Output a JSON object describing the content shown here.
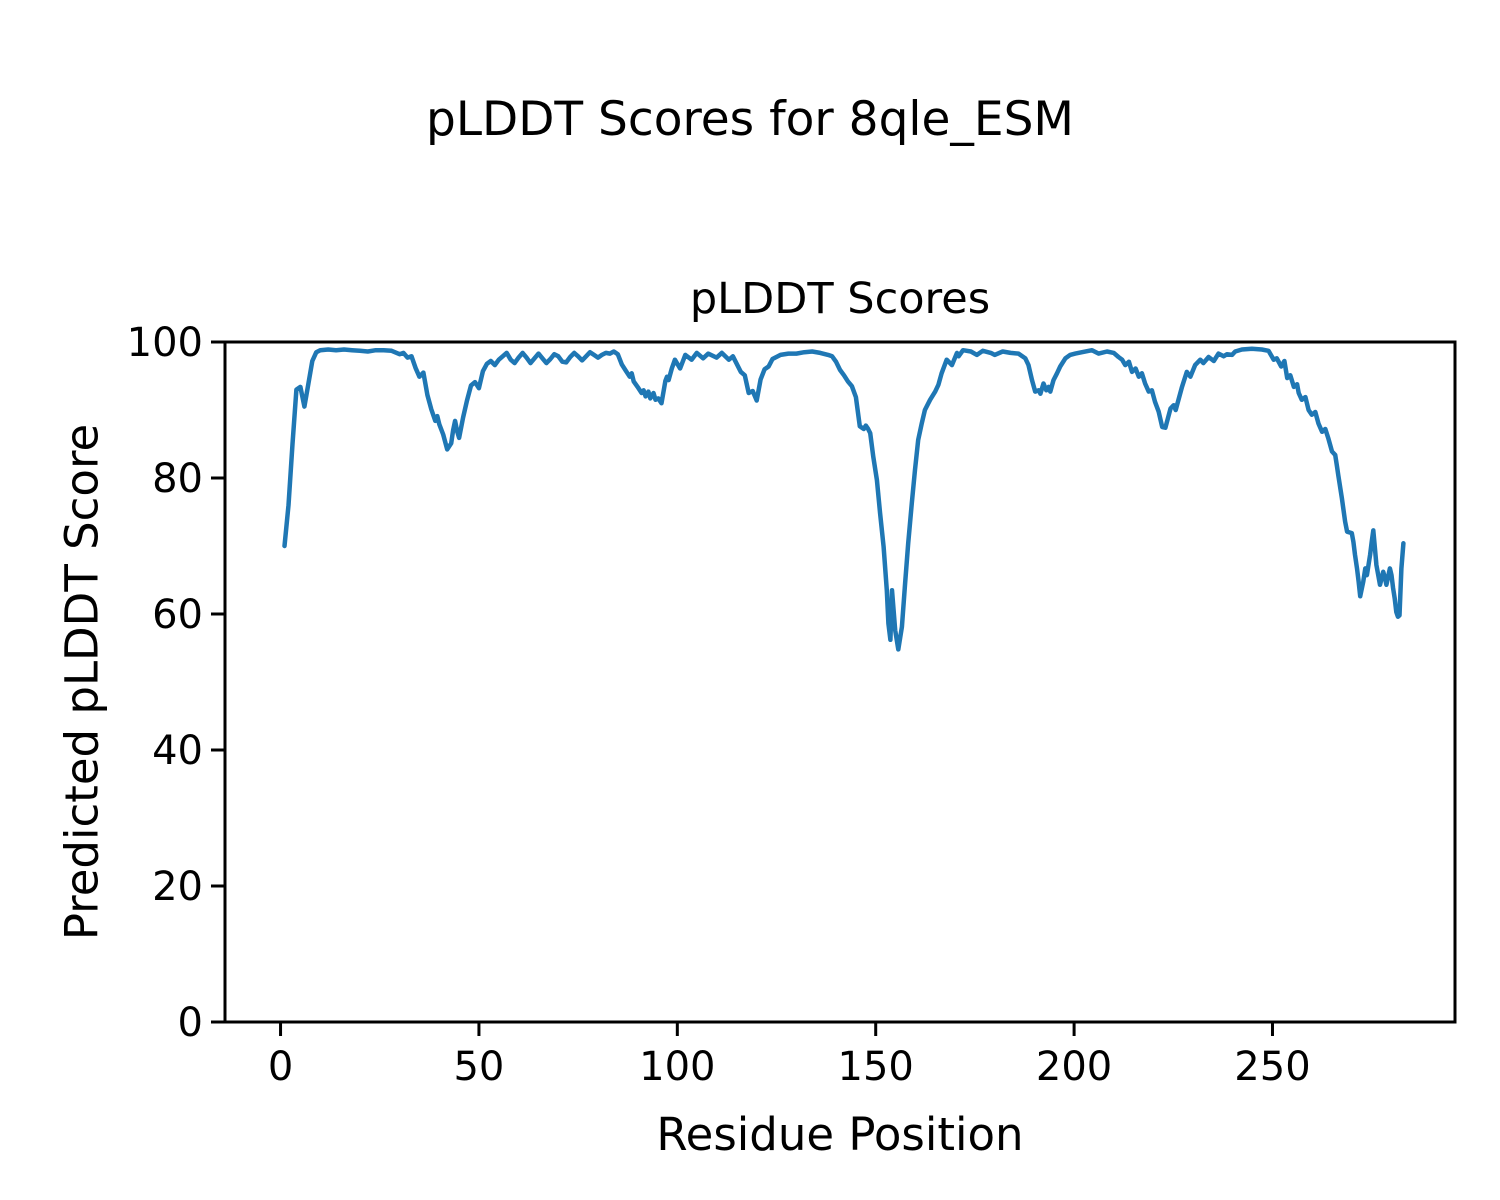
{
  "figure": {
    "title": "pLDDT Scores for 8qle_ESM"
  },
  "chart_data": {
    "type": "line",
    "title": "pLDDT Scores",
    "xlabel": "Residue Position",
    "ylabel": "Predicted pLDDT Score",
    "xlim": [
      -14,
      296
    ],
    "ylim": [
      0,
      100
    ],
    "xticks": [
      0,
      50,
      100,
      150,
      200,
      250
    ],
    "yticks": [
      0,
      20,
      40,
      60,
      80,
      100
    ],
    "grid": false,
    "legend": "none",
    "line_color": "#1f77b4",
    "line_width": 4.5,
    "series": [
      {
        "name": "pLDDT",
        "points": [
          [
            1,
            70.0
          ],
          [
            2,
            76.0
          ],
          [
            3,
            85.0
          ],
          [
            4,
            93.0
          ],
          [
            5,
            93.4
          ],
          [
            6,
            90.5
          ],
          [
            7,
            93.8
          ],
          [
            8,
            97.2
          ],
          [
            9,
            98.5
          ],
          [
            10,
            98.8
          ],
          [
            12,
            98.9
          ],
          [
            14,
            98.8
          ],
          [
            16,
            98.9
          ],
          [
            18,
            98.8
          ],
          [
            20,
            98.7
          ],
          [
            22,
            98.6
          ],
          [
            24,
            98.8
          ],
          [
            26,
            98.8
          ],
          [
            28,
            98.7
          ],
          [
            30,
            98.2
          ],
          [
            31,
            98.4
          ],
          [
            32,
            97.7
          ],
          [
            33,
            97.9
          ],
          [
            34,
            96.2
          ],
          [
            35,
            94.9
          ],
          [
            36,
            95.5
          ],
          [
            37,
            92.2
          ],
          [
            38,
            90.1
          ],
          [
            39,
            88.4
          ],
          [
            39.5,
            89.1
          ],
          [
            40,
            87.9
          ],
          [
            41,
            86.4
          ],
          [
            42,
            84.2
          ],
          [
            43,
            85.1
          ],
          [
            43.5,
            87.0
          ],
          [
            44,
            88.4
          ],
          [
            44.5,
            86.9
          ],
          [
            45,
            85.9
          ],
          [
            46,
            88.9
          ],
          [
            47,
            91.4
          ],
          [
            48,
            93.6
          ],
          [
            49,
            94.1
          ],
          [
            50,
            93.2
          ],
          [
            51,
            95.7
          ],
          [
            52,
            96.8
          ],
          [
            53,
            97.2
          ],
          [
            54,
            96.6
          ],
          [
            55,
            97.4
          ],
          [
            56,
            97.9
          ],
          [
            57,
            98.4
          ],
          [
            58,
            97.4
          ],
          [
            59,
            96.9
          ],
          [
            60,
            97.7
          ],
          [
            61,
            98.4
          ],
          [
            62,
            97.7
          ],
          [
            63,
            96.9
          ],
          [
            64,
            97.6
          ],
          [
            65,
            98.3
          ],
          [
            66,
            97.6
          ],
          [
            67,
            96.9
          ],
          [
            68,
            97.5
          ],
          [
            69,
            98.2
          ],
          [
            70,
            97.9
          ],
          [
            71,
            97.1
          ],
          [
            72,
            97.0
          ],
          [
            73,
            97.8
          ],
          [
            74,
            98.4
          ],
          [
            75,
            97.9
          ],
          [
            76,
            97.3
          ],
          [
            77,
            97.9
          ],
          [
            78,
            98.5
          ],
          [
            79,
            98.1
          ],
          [
            80,
            97.7
          ],
          [
            81,
            98.1
          ],
          [
            82,
            98.4
          ],
          [
            83,
            98.3
          ],
          [
            84,
            98.6
          ],
          [
            85,
            98.2
          ],
          [
            86,
            96.7
          ],
          [
            87,
            95.8
          ],
          [
            88,
            94.9
          ],
          [
            88.5,
            95.4
          ],
          [
            89,
            94.2
          ],
          [
            90,
            93.4
          ],
          [
            91,
            92.5
          ],
          [
            91.5,
            92.9
          ],
          [
            92,
            92.0
          ],
          [
            92.7,
            92.7
          ],
          [
            93.2,
            91.7
          ],
          [
            94,
            92.5
          ],
          [
            94.5,
            91.5
          ],
          [
            95.2,
            91.7
          ],
          [
            96,
            91.0
          ],
          [
            97,
            94.3
          ],
          [
            97.4,
            94.9
          ],
          [
            97.8,
            94.4
          ],
          [
            98.6,
            96.1
          ],
          [
            99.4,
            97.4
          ],
          [
            100.7,
            96.1
          ],
          [
            102,
            98.1
          ],
          [
            103.6,
            97.4
          ],
          [
            104.9,
            98.4
          ],
          [
            106.5,
            97.6
          ],
          [
            107.8,
            98.3
          ],
          [
            109.9,
            97.7
          ],
          [
            111.2,
            98.4
          ],
          [
            113,
            97.4
          ],
          [
            114,
            97.9
          ],
          [
            116,
            95.6
          ],
          [
            117,
            95.1
          ],
          [
            118,
            92.5
          ],
          [
            119,
            92.8
          ],
          [
            120,
            91.4
          ],
          [
            121,
            94.5
          ],
          [
            122,
            96.0
          ],
          [
            123,
            96.4
          ],
          [
            124,
            97.5
          ],
          [
            126,
            98.1
          ],
          [
            128,
            98.3
          ],
          [
            130,
            98.3
          ],
          [
            132,
            98.5
          ],
          [
            134,
            98.6
          ],
          [
            136,
            98.4
          ],
          [
            138,
            98.1
          ],
          [
            139,
            97.9
          ],
          [
            140,
            97.1
          ],
          [
            141,
            95.9
          ],
          [
            142,
            95.1
          ],
          [
            143,
            94.2
          ],
          [
            144,
            93.5
          ],
          [
            145,
            91.9
          ],
          [
            146,
            87.6
          ],
          [
            147,
            87.2
          ],
          [
            147.5,
            87.7
          ],
          [
            148,
            87.3
          ],
          [
            148.6,
            86.6
          ],
          [
            149.4,
            83.1
          ],
          [
            150.3,
            79.7
          ],
          [
            151.1,
            74.8
          ],
          [
            152,
            69.9
          ],
          [
            152.8,
            63.5
          ],
          [
            153.2,
            58.6
          ],
          [
            153.7,
            56.2
          ],
          [
            154.1,
            63.5
          ],
          [
            154.9,
            57.6
          ],
          [
            155.7,
            54.8
          ],
          [
            156.6,
            58.1
          ],
          [
            157.4,
            64.5
          ],
          [
            158.2,
            70.4
          ],
          [
            159.1,
            76.3
          ],
          [
            159.9,
            81.2
          ],
          [
            160.7,
            85.6
          ],
          [
            161.6,
            88.0
          ],
          [
            162.4,
            90.0
          ],
          [
            163.7,
            91.5
          ],
          [
            165,
            92.7
          ],
          [
            165.8,
            93.7
          ],
          [
            166.6,
            95.4
          ],
          [
            167.9,
            97.4
          ],
          [
            169.2,
            96.6
          ],
          [
            170.5,
            98.4
          ],
          [
            170.9,
            97.9
          ],
          [
            172,
            98.8
          ],
          [
            174,
            98.6
          ],
          [
            175.5,
            98.1
          ],
          [
            177,
            98.7
          ],
          [
            179,
            98.4
          ],
          [
            180,
            98.1
          ],
          [
            182,
            98.6
          ],
          [
            184,
            98.4
          ],
          [
            186,
            98.3
          ],
          [
            187.7,
            97.6
          ],
          [
            188.5,
            96.6
          ],
          [
            189.4,
            94.4
          ],
          [
            190.2,
            92.7
          ],
          [
            191.1,
            92.9
          ],
          [
            191.5,
            92.4
          ],
          [
            192.3,
            93.9
          ],
          [
            193,
            92.9
          ],
          [
            193.6,
            93.4
          ],
          [
            194,
            92.7
          ],
          [
            194.8,
            94.4
          ],
          [
            195.7,
            95.4
          ],
          [
            196.5,
            96.4
          ],
          [
            197.8,
            97.6
          ],
          [
            199,
            98.1
          ],
          [
            200.3,
            98.3
          ],
          [
            202,
            98.5
          ],
          [
            204.5,
            98.8
          ],
          [
            206.2,
            98.3
          ],
          [
            208.3,
            98.6
          ],
          [
            210,
            98.4
          ],
          [
            211.2,
            97.8
          ],
          [
            212.1,
            97.4
          ],
          [
            212.9,
            96.6
          ],
          [
            213.8,
            97.1
          ],
          [
            214.6,
            95.6
          ],
          [
            215.5,
            96.1
          ],
          [
            216.3,
            94.9
          ],
          [
            217.1,
            95.4
          ],
          [
            217.9,
            93.9
          ],
          [
            218.8,
            92.7
          ],
          [
            219.6,
            92.9
          ],
          [
            220.4,
            91.2
          ],
          [
            221.3,
            89.8
          ],
          [
            222.2,
            87.5
          ],
          [
            223,
            87.4
          ],
          [
            224.3,
            90.2
          ],
          [
            225.1,
            90.7
          ],
          [
            225.6,
            90.0
          ],
          [
            227.2,
            93.4
          ],
          [
            228.4,
            95.6
          ],
          [
            229.3,
            94.9
          ],
          [
            230.5,
            96.6
          ],
          [
            231.8,
            97.4
          ],
          [
            232.6,
            96.9
          ],
          [
            233.9,
            97.8
          ],
          [
            235.2,
            97.2
          ],
          [
            236.4,
            98.3
          ],
          [
            237.7,
            97.9
          ],
          [
            238.5,
            98.2
          ],
          [
            239.8,
            98.1
          ],
          [
            240.6,
            98.6
          ],
          [
            242.3,
            98.9
          ],
          [
            244.8,
            99.0
          ],
          [
            247.3,
            98.9
          ],
          [
            249,
            98.7
          ],
          [
            250.3,
            97.4
          ],
          [
            251.1,
            97.6
          ],
          [
            252.2,
            96.4
          ],
          [
            253,
            97.2
          ],
          [
            253.7,
            94.7
          ],
          [
            254.5,
            95.1
          ],
          [
            255.4,
            93.4
          ],
          [
            256.2,
            93.8
          ],
          [
            256.6,
            92.5
          ],
          [
            257.4,
            91.5
          ],
          [
            258.3,
            91.9
          ],
          [
            259.1,
            90.0
          ],
          [
            259.9,
            89.3
          ],
          [
            260.8,
            89.7
          ],
          [
            261.6,
            88.0
          ],
          [
            262.5,
            86.8
          ],
          [
            263.3,
            87.2
          ],
          [
            264.1,
            85.8
          ],
          [
            265,
            83.9
          ],
          [
            265.8,
            83.4
          ],
          [
            266.2,
            81.9
          ],
          [
            266.6,
            80.4
          ],
          [
            267.5,
            77.0
          ],
          [
            268.3,
            73.6
          ],
          [
            268.8,
            72.1
          ],
          [
            270,
            71.9
          ],
          [
            270.4,
            70.6
          ],
          [
            270.8,
            68.7
          ],
          [
            271.3,
            66.7
          ],
          [
            271.7,
            64.8
          ],
          [
            272.1,
            62.6
          ],
          [
            272.9,
            64.8
          ],
          [
            273.4,
            66.7
          ],
          [
            273.8,
            65.7
          ],
          [
            274.6,
            68.7
          ],
          [
            275,
            70.6
          ],
          [
            275.4,
            72.3
          ],
          [
            275.8,
            69.7
          ],
          [
            276.2,
            67.2
          ],
          [
            277.1,
            64.3
          ],
          [
            277.9,
            66.2
          ],
          [
            278.3,
            65.4
          ],
          [
            278.7,
            64.3
          ],
          [
            279.6,
            66.7
          ],
          [
            280,
            65.7
          ],
          [
            280.4,
            63.8
          ],
          [
            280.8,
            62.3
          ],
          [
            281.2,
            60.3
          ],
          [
            281.6,
            59.6
          ],
          [
            282,
            59.8
          ],
          [
            282.5,
            66.7
          ],
          [
            283,
            70.4
          ]
        ]
      }
    ]
  }
}
